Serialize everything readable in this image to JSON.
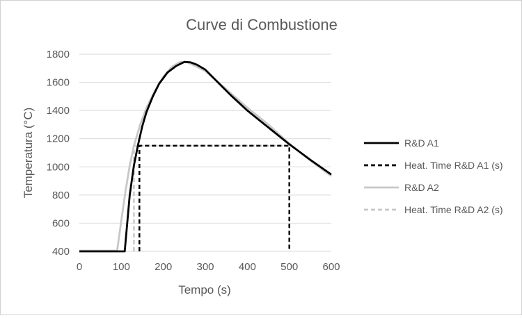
{
  "chart_data": {
    "type": "line",
    "title": "Curve di Combustione",
    "xlabel": "Tempo (s)",
    "ylabel": "Temperatura (°C)",
    "xlim": [
      0,
      600
    ],
    "ylim": [
      400,
      1800
    ],
    "xticks": [
      0,
      100,
      200,
      300,
      400,
      500,
      600
    ],
    "yticks": [
      400,
      600,
      800,
      1000,
      1200,
      1400,
      1600,
      1800
    ],
    "grid": "horizontal",
    "legend_position": "right",
    "series": [
      {
        "name": "R&D A1",
        "color": "#000000",
        "style": "solid",
        "points": [
          [
            0,
            400
          ],
          [
            95,
            400
          ],
          [
            108,
            400
          ],
          [
            120,
            800
          ],
          [
            130,
            1010
          ],
          [
            140,
            1160
          ],
          [
            150,
            1290
          ],
          [
            160,
            1390
          ],
          [
            175,
            1500
          ],
          [
            190,
            1590
          ],
          [
            210,
            1670
          ],
          [
            230,
            1715
          ],
          [
            250,
            1745
          ],
          [
            265,
            1742
          ],
          [
            280,
            1725
          ],
          [
            300,
            1690
          ],
          [
            330,
            1600
          ],
          [
            360,
            1510
          ],
          [
            400,
            1400
          ],
          [
            450,
            1280
          ],
          [
            500,
            1160
          ],
          [
            550,
            1050
          ],
          [
            600,
            945
          ]
        ]
      },
      {
        "name": "Heat. Time  R&D A1 (s)",
        "color": "#000000",
        "style": "dashed",
        "points": [
          [
            143,
            400
          ],
          [
            143,
            1150
          ],
          [
            500,
            1150
          ],
          [
            500,
            400
          ]
        ]
      },
      {
        "name": "R&D A2",
        "color": "#c8c8c8",
        "style": "solid",
        "points": [
          [
            0,
            405
          ],
          [
            90,
            405
          ],
          [
            100,
            620
          ],
          [
            110,
            830
          ],
          [
            120,
            1010
          ],
          [
            130,
            1150
          ],
          [
            145,
            1300
          ],
          [
            160,
            1420
          ],
          [
            180,
            1540
          ],
          [
            200,
            1640
          ],
          [
            220,
            1710
          ],
          [
            240,
            1745
          ],
          [
            255,
            1745
          ],
          [
            270,
            1725
          ],
          [
            300,
            1680
          ],
          [
            350,
            1550
          ],
          [
            400,
            1420
          ],
          [
            450,
            1300
          ],
          [
            500,
            1165
          ],
          [
            550,
            1045
          ],
          [
            600,
            935
          ]
        ]
      },
      {
        "name": "Heat. Time  R&D A2 (s)",
        "color": "#c8c8c8",
        "style": "dashed",
        "points": [
          [
            130,
            400
          ],
          [
            130,
            1150
          ],
          [
            500,
            1150
          ]
        ]
      }
    ]
  }
}
